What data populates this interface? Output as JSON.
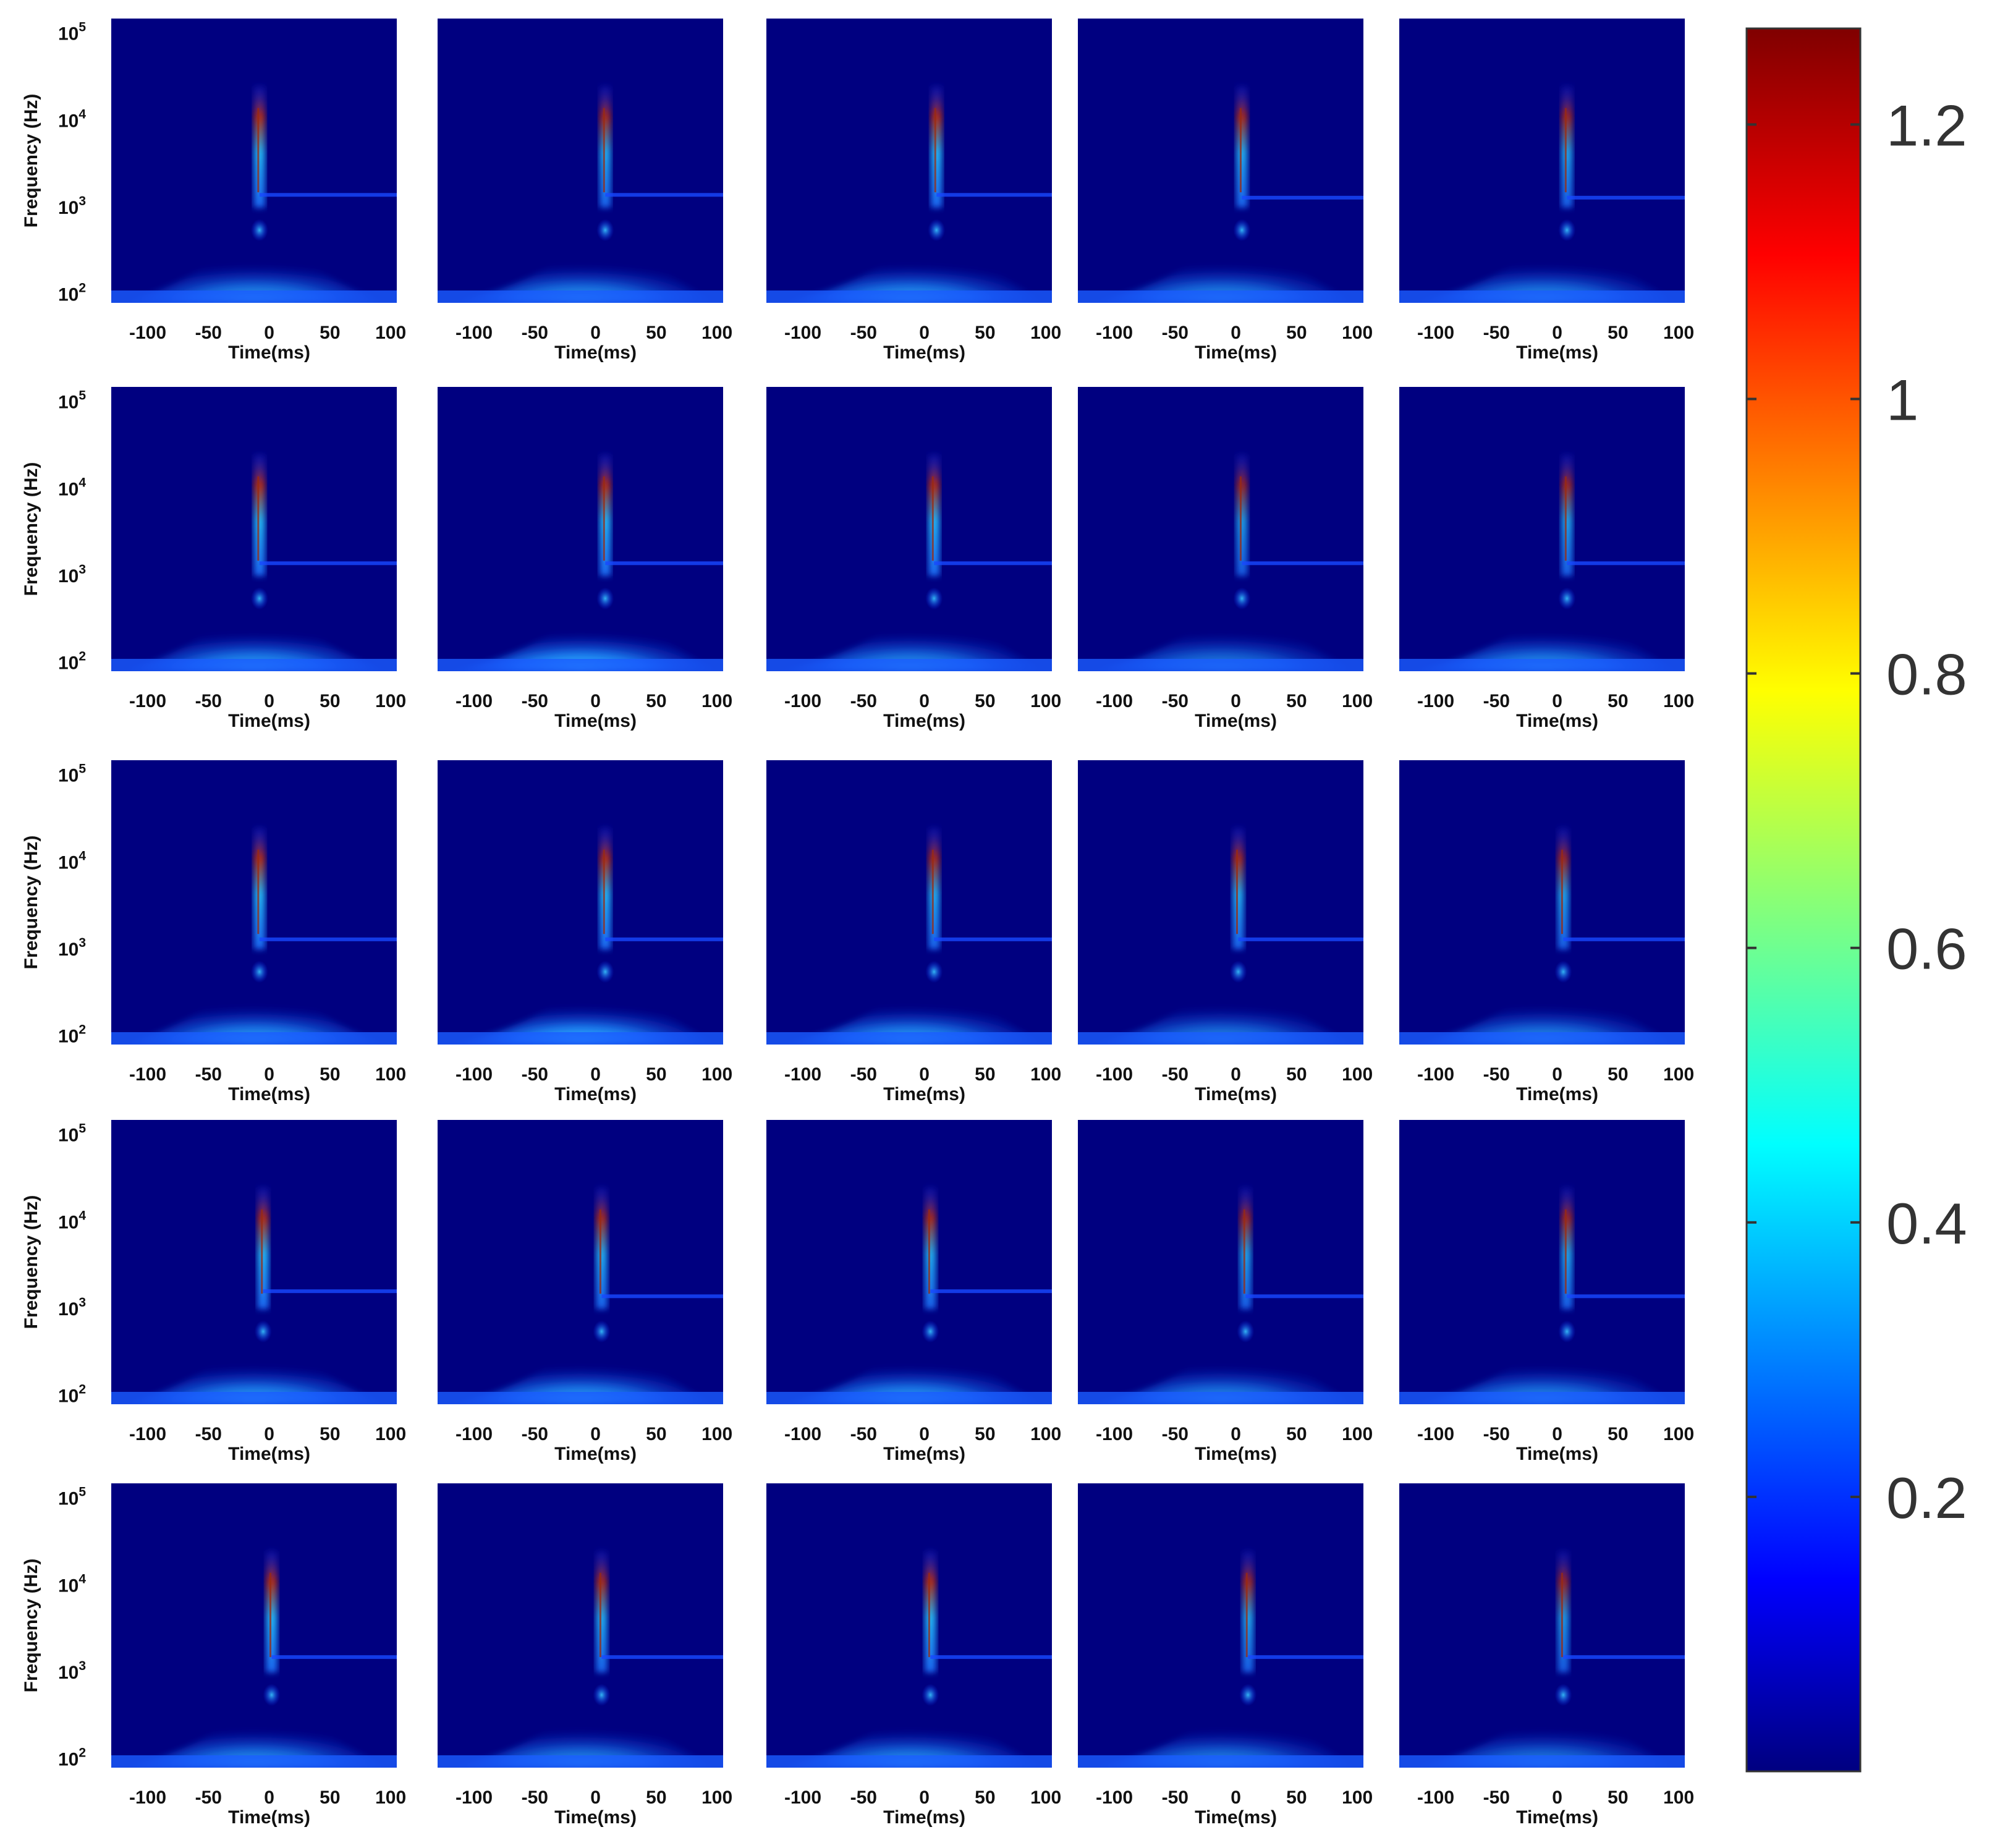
{
  "chart_data": {
    "type": "heatmap",
    "title": "",
    "grid": {
      "rows": 5,
      "cols": 5
    },
    "xlabel": "Time(ms)",
    "ylabel": "Frequency (Hz)",
    "x_ticks": [
      "-100",
      "-50",
      "0",
      "50",
      "100"
    ],
    "x_tick_values": [
      -100,
      -50,
      0,
      50,
      100
    ],
    "xlim": [
      -130,
      105
    ],
    "y_ticks": [
      {
        "base": "10",
        "exp": "2",
        "value": 100
      },
      {
        "base": "10",
        "exp": "3",
        "value": 1000
      },
      {
        "base": "10",
        "exp": "4",
        "value": 10000
      },
      {
        "base": "10",
        "exp": "5",
        "value": 100000
      }
    ],
    "ylim": [
      80,
      150000
    ],
    "yscale": "log",
    "colormap": "jet",
    "colorbar": {
      "ticks": [
        "0.2",
        "0.4",
        "0.6",
        "0.8",
        "1",
        "1.2"
      ],
      "tick_values": [
        0.2,
        0.4,
        0.6,
        0.8,
        1.0,
        1.2
      ],
      "range": [
        0.0,
        1.27
      ]
    },
    "panels": [
      {
        "row": 1,
        "col": 1,
        "event_time_ms": -8,
        "cone_intensity": 0.42,
        "burst_peak": 1.05,
        "line_freq_hz": 1400
      },
      {
        "row": 1,
        "col": 2,
        "event_time_ms": 8,
        "cone_intensity": 0.42,
        "burst_peak": 0.95,
        "line_freq_hz": 1400
      },
      {
        "row": 1,
        "col": 3,
        "event_time_ms": 10,
        "cone_intensity": 0.44,
        "burst_peak": 1.0,
        "line_freq_hz": 1400
      },
      {
        "row": 1,
        "col": 4,
        "event_time_ms": 5,
        "cone_intensity": 0.4,
        "burst_peak": 0.95,
        "line_freq_hz": 1300
      },
      {
        "row": 1,
        "col": 5,
        "event_time_ms": 8,
        "cone_intensity": 0.4,
        "burst_peak": 0.9,
        "line_freq_hz": 1300
      },
      {
        "row": 2,
        "col": 1,
        "event_time_ms": -8,
        "cone_intensity": 0.45,
        "burst_peak": 1.0,
        "line_freq_hz": 1400
      },
      {
        "row": 2,
        "col": 2,
        "event_time_ms": 8,
        "cone_intensity": 0.5,
        "burst_peak": 1.0,
        "line_freq_hz": 1400
      },
      {
        "row": 2,
        "col": 3,
        "event_time_ms": 8,
        "cone_intensity": 0.42,
        "burst_peak": 1.0,
        "line_freq_hz": 1400
      },
      {
        "row": 2,
        "col": 4,
        "event_time_ms": 5,
        "cone_intensity": 0.36,
        "burst_peak": 0.85,
        "line_freq_hz": 1400
      },
      {
        "row": 2,
        "col": 5,
        "event_time_ms": 8,
        "cone_intensity": 0.42,
        "burst_peak": 0.9,
        "line_freq_hz": 1400
      },
      {
        "row": 3,
        "col": 1,
        "event_time_ms": -8,
        "cone_intensity": 0.45,
        "burst_peak": 1.0,
        "line_freq_hz": 1300
      },
      {
        "row": 3,
        "col": 2,
        "event_time_ms": 8,
        "cone_intensity": 0.55,
        "burst_peak": 1.0,
        "line_freq_hz": 1300
      },
      {
        "row": 3,
        "col": 3,
        "event_time_ms": 8,
        "cone_intensity": 0.45,
        "burst_peak": 0.95,
        "line_freq_hz": 1300
      },
      {
        "row": 3,
        "col": 4,
        "event_time_ms": 2,
        "cone_intensity": 0.38,
        "burst_peak": 0.95,
        "line_freq_hz": 1300
      },
      {
        "row": 3,
        "col": 5,
        "event_time_ms": 5,
        "cone_intensity": 0.4,
        "burst_peak": 0.9,
        "line_freq_hz": 1300
      },
      {
        "row": 4,
        "col": 1,
        "event_time_ms": -5,
        "cone_intensity": 0.45,
        "burst_peak": 1.05,
        "line_freq_hz": 1600
      },
      {
        "row": 4,
        "col": 2,
        "event_time_ms": 5,
        "cone_intensity": 0.45,
        "burst_peak": 0.95,
        "line_freq_hz": 1400
      },
      {
        "row": 4,
        "col": 3,
        "event_time_ms": 5,
        "cone_intensity": 0.45,
        "burst_peak": 0.95,
        "line_freq_hz": 1600
      },
      {
        "row": 4,
        "col": 4,
        "event_time_ms": 8,
        "cone_intensity": 0.4,
        "burst_peak": 0.9,
        "line_freq_hz": 1400
      },
      {
        "row": 4,
        "col": 5,
        "event_time_ms": 8,
        "cone_intensity": 0.4,
        "burst_peak": 0.9,
        "line_freq_hz": 1400
      },
      {
        "row": 5,
        "col": 1,
        "event_time_ms": 2,
        "cone_intensity": 0.42,
        "burst_peak": 1.05,
        "line_freq_hz": 1500
      },
      {
        "row": 5,
        "col": 2,
        "event_time_ms": 5,
        "cone_intensity": 0.4,
        "burst_peak": 0.95,
        "line_freq_hz": 1500
      },
      {
        "row": 5,
        "col": 3,
        "event_time_ms": 5,
        "cone_intensity": 0.42,
        "burst_peak": 1.0,
        "line_freq_hz": 1500
      },
      {
        "row": 5,
        "col": 4,
        "event_time_ms": 10,
        "cone_intensity": 0.38,
        "burst_peak": 0.9,
        "line_freq_hz": 1500
      },
      {
        "row": 5,
        "col": 5,
        "event_time_ms": 5,
        "cone_intensity": 0.36,
        "burst_peak": 0.85,
        "line_freq_hz": 1500
      }
    ]
  }
}
